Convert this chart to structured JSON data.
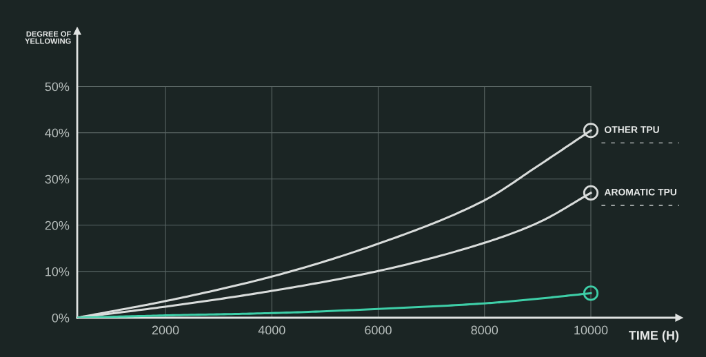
{
  "chart_data": {
    "type": "line",
    "xlabel": "TIME (H)",
    "ylabel": "DEGREE OF\nYELLOWING",
    "x": [
      340,
      2000,
      4000,
      6000,
      8000,
      9000,
      10000
    ],
    "series": [
      {
        "name": "OTHER TPU",
        "color": "#d9dcdb",
        "values": [
          0,
          3.6,
          8.9,
          16.0,
          25.4,
          32.8,
          40.5
        ]
      },
      {
        "name": "AROMATIC TPU",
        "color": "#d9dcdb",
        "values": [
          0,
          2.4,
          5.8,
          10.1,
          16.2,
          20.5,
          27.0
        ]
      },
      {
        "color": "#3ecfa8",
        "values": [
          0,
          0.5,
          1.0,
          1.9,
          3.1,
          4.1,
          5.3
        ]
      }
    ],
    "xlim": [
      340,
      11660
    ],
    "ylim": [
      0,
      62
    ],
    "xticks": [
      2000,
      4000,
      6000,
      8000,
      10000
    ],
    "yticks": [
      {
        "value": 0,
        "label": "0%"
      },
      {
        "value": 10,
        "label": "10%"
      },
      {
        "value": 20,
        "label": "20%"
      },
      {
        "value": 30,
        "label": "30%"
      },
      {
        "value": 40,
        "label": "40%"
      },
      {
        "value": 50,
        "label": "50%"
      }
    ],
    "grid": true,
    "line_style": "solid"
  }
}
